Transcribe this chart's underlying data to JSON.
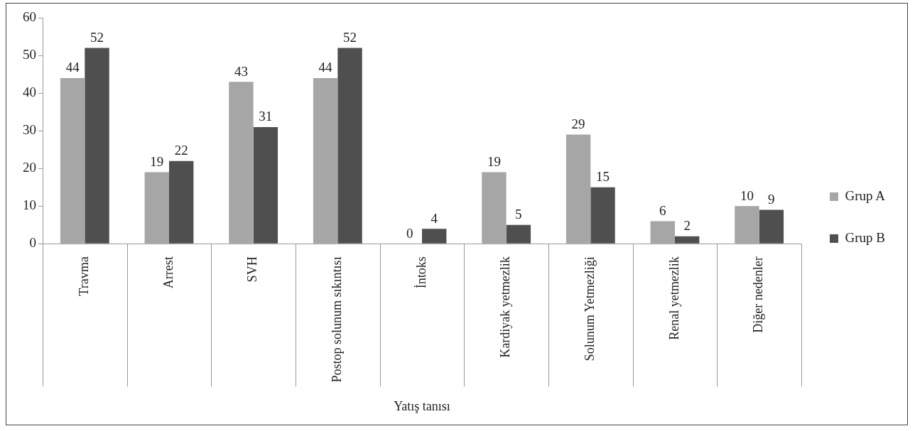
{
  "chart_data": {
    "type": "bar",
    "xlabel": "Yatış tanısı",
    "categories": [
      "Travma",
      "Arrest",
      "SVH",
      "Postop solunum sıkıntısı",
      "İntoks",
      "Kardiyak yetmezlik",
      "Solunum Yetmezliği",
      "Renal yetmezlik",
      "Diğer nedenler"
    ],
    "series": [
      {
        "name": "Grup A",
        "color": "#a6a6a6",
        "values": [
          44,
          19,
          43,
          44,
          0,
          19,
          29,
          6,
          10
        ]
      },
      {
        "name": "Grup B",
        "color": "#4f4f4f",
        "values": [
          52,
          22,
          31,
          52,
          4,
          5,
          15,
          2,
          9
        ]
      }
    ],
    "ylim": [
      0,
      60
    ],
    "yticks": [
      0,
      10,
      20,
      30,
      40,
      50,
      60
    ],
    "data_labels": true,
    "legend": "right"
  }
}
